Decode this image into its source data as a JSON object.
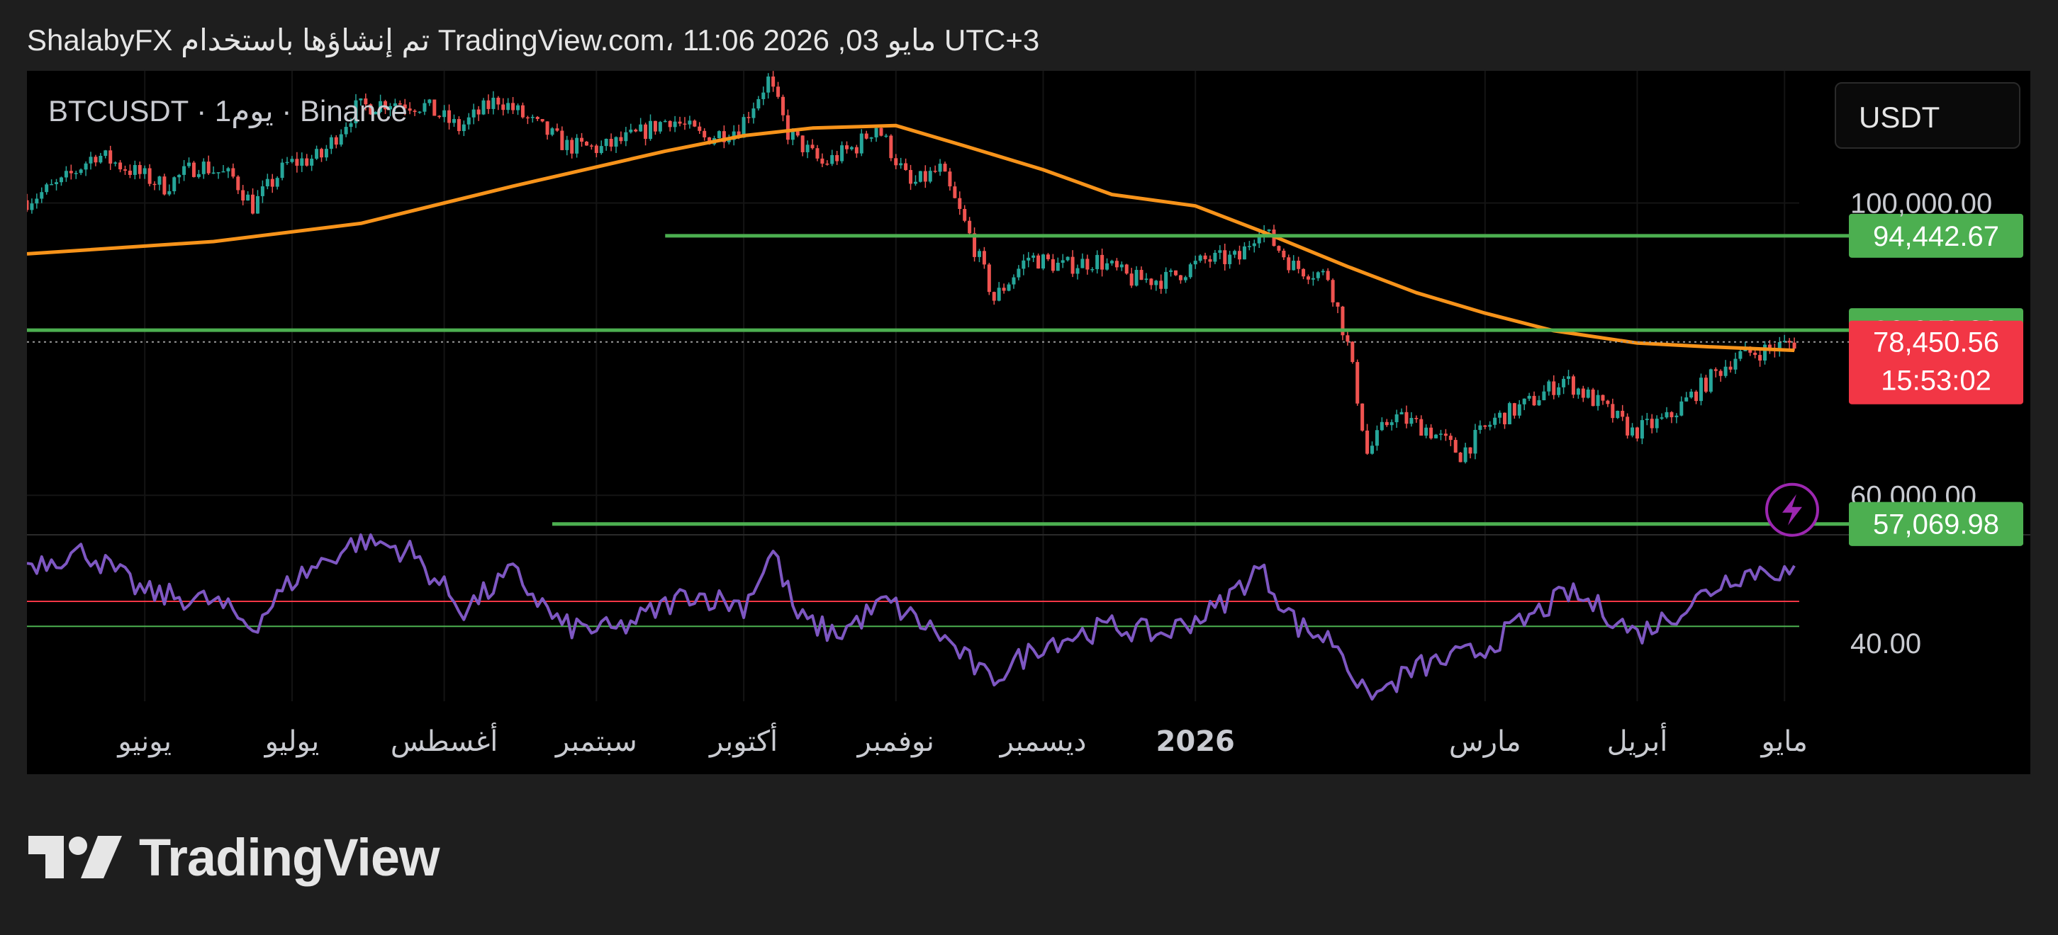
{
  "header": {
    "text": "ShalabyFX تم إنشاؤها باستخدام TradingView.com، 11:06 2026 ,03 مايو UTC+3"
  },
  "chart_header": {
    "symbol_line": "BTCUSDT · 1يوم · Binance",
    "currency": "USDT"
  },
  "logo": {
    "text": "TradingView"
  },
  "colors": {
    "background": "#000000",
    "page": "#1e1e1e",
    "up": "#26a69a",
    "down": "#ef5350",
    "ma": "#f7931a",
    "level": "#4caf50",
    "rsi": "#7e57c2",
    "rsi_upper": "#f23645",
    "rsi_lower": "#4caf50",
    "price_tag": "#f23645",
    "level_tag": "#4caf50"
  },
  "icons": {
    "alert": "lightning-icon"
  },
  "chart_data": {
    "type": "candlestick",
    "symbol": "BTCUSDT",
    "interval": "1D",
    "exchange": "Binance",
    "y_scale": "log",
    "ylim": [
      56000,
      126000
    ],
    "price_ticks": [
      {
        "value": 100000,
        "label": "100,000.00"
      },
      {
        "value": 60000,
        "label": "60,000.00"
      }
    ],
    "x_axis": {
      "start": "2025-05-08",
      "end": "2026-05-04"
    },
    "x_labels": [
      {
        "date": "2025-06-01",
        "label": "يونيو",
        "bold": false
      },
      {
        "date": "2025-07-01",
        "label": "يوليو",
        "bold": false
      },
      {
        "date": "2025-08-01",
        "label": "أغسطس",
        "bold": false
      },
      {
        "date": "2025-09-01",
        "label": "سبتمبر",
        "bold": false
      },
      {
        "date": "2025-10-01",
        "label": "أكتوبر",
        "bold": false
      },
      {
        "date": "2025-11-01",
        "label": "نوفمبر",
        "bold": false
      },
      {
        "date": "2025-12-01",
        "label": "ديسمبر",
        "bold": false
      },
      {
        "date": "2026-01-01",
        "label": "2026",
        "bold": true
      },
      {
        "date": "2026-03-01",
        "label": "مارس",
        "bold": false
      },
      {
        "date": "2026-04-01",
        "label": "أبريل",
        "bold": false
      },
      {
        "date": "2026-05-01",
        "label": "مايو",
        "bold": false
      }
    ],
    "price_path": [
      [
        "2025-05-08",
        100500
      ],
      [
        "2025-05-15",
        103500
      ],
      [
        "2025-05-22",
        109000
      ],
      [
        "2025-05-29",
        106000
      ],
      [
        "2025-06-05",
        103000
      ],
      [
        "2025-06-12",
        107000
      ],
      [
        "2025-06-19",
        104500
      ],
      [
        "2025-06-23",
        99500
      ],
      [
        "2025-06-30",
        107000
      ],
      [
        "2025-07-07",
        108500
      ],
      [
        "2025-07-14",
        118000
      ],
      [
        "2025-07-21",
        119500
      ],
      [
        "2025-07-28",
        118500
      ],
      [
        "2025-08-04",
        114000
      ],
      [
        "2025-08-12",
        120000
      ],
      [
        "2025-08-19",
        115000
      ],
      [
        "2025-08-26",
        110500
      ],
      [
        "2025-09-02",
        110000
      ],
      [
        "2025-09-09",
        112500
      ],
      [
        "2025-09-16",
        116000
      ],
      [
        "2025-09-23",
        112000
      ],
      [
        "2025-09-30",
        114000
      ],
      [
        "2025-10-06",
        124000
      ],
      [
        "2025-10-10",
        113000
      ],
      [
        "2025-10-17",
        107000
      ],
      [
        "2025-10-24",
        110500
      ],
      [
        "2025-10-28",
        114500
      ],
      [
        "2025-11-04",
        103000
      ],
      [
        "2025-11-10",
        106000
      ],
      [
        "2025-11-17",
        92500
      ],
      [
        "2025-11-21",
        84500
      ],
      [
        "2025-11-28",
        91000
      ],
      [
        "2025-12-05",
        89500
      ],
      [
        "2025-12-12",
        90500
      ],
      [
        "2025-12-19",
        87500
      ],
      [
        "2025-12-26",
        87500
      ],
      [
        "2026-01-03",
        90500
      ],
      [
        "2026-01-10",
        90800
      ],
      [
        "2026-01-14",
        96000
      ],
      [
        "2026-01-21",
        89500
      ],
      [
        "2026-01-28",
        88000
      ],
      [
        "2026-02-01",
        78000
      ],
      [
        "2026-02-05",
        64500
      ],
      [
        "2026-02-10",
        69000
      ],
      [
        "2026-02-17",
        67500
      ],
      [
        "2026-02-24",
        64500
      ],
      [
        "2026-03-03",
        68500
      ],
      [
        "2026-03-10",
        70500
      ],
      [
        "2026-03-17",
        73500
      ],
      [
        "2026-03-24",
        70500
      ],
      [
        "2026-03-31",
        67000
      ],
      [
        "2026-04-07",
        68500
      ],
      [
        "2026-04-14",
        72500
      ],
      [
        "2026-04-21",
        76500
      ],
      [
        "2026-04-28",
        77500
      ],
      [
        "2026-05-03",
        78450.56
      ]
    ],
    "moving_average": [
      [
        "2025-05-08",
        91500
      ],
      [
        "2025-06-15",
        93500
      ],
      [
        "2025-07-15",
        96500
      ],
      [
        "2025-08-15",
        103000
      ],
      [
        "2025-09-15",
        109500
      ],
      [
        "2025-10-01",
        112500
      ],
      [
        "2025-10-15",
        114000
      ],
      [
        "2025-11-01",
        114500
      ],
      [
        "2025-11-15",
        110500
      ],
      [
        "2025-12-01",
        106000
      ],
      [
        "2025-12-15",
        101500
      ],
      [
        "2026-01-01",
        99500
      ],
      [
        "2026-01-15",
        95000
      ],
      [
        "2026-02-01",
        89500
      ],
      [
        "2026-02-15",
        85500
      ],
      [
        "2026-03-01",
        82500
      ],
      [
        "2026-03-15",
        80000
      ],
      [
        "2026-04-01",
        78300
      ],
      [
        "2026-04-15",
        77800
      ],
      [
        "2026-05-03",
        77300
      ]
    ],
    "levels": [
      {
        "value": 94442.67,
        "label": "94,442.67",
        "start": "2025-09-15"
      },
      {
        "value": 80079.39,
        "label": "80,079.39",
        "start": "2025-05-08"
      },
      {
        "value": 57069.98,
        "label": "57,069.98",
        "start": "2025-08-23"
      }
    ],
    "last_price": {
      "value": 78450.56,
      "label": "78,450.56",
      "countdown": "15:53:02"
    },
    "rsi": {
      "upper": 50,
      "lower": 44,
      "tick": {
        "value": 40,
        "label": "40.00"
      },
      "ylim": [
        26,
        66
      ],
      "path": [
        [
          "2025-05-08",
          59
        ],
        [
          "2025-05-20",
          62
        ],
        [
          "2025-06-01",
          52
        ],
        [
          "2025-06-15",
          50
        ],
        [
          "2025-06-23",
          44
        ],
        [
          "2025-07-01",
          55
        ],
        [
          "2025-07-15",
          65
        ],
        [
          "2025-07-25",
          62
        ],
        [
          "2025-08-05",
          48
        ],
        [
          "2025-08-15",
          57
        ],
        [
          "2025-08-25",
          44
        ],
        [
          "2025-09-05",
          43
        ],
        [
          "2025-09-20",
          52
        ],
        [
          "2025-10-01",
          49
        ],
        [
          "2025-10-07",
          62
        ],
        [
          "2025-10-12",
          46
        ],
        [
          "2025-10-20",
          42
        ],
        [
          "2025-10-30",
          50
        ],
        [
          "2025-11-10",
          42
        ],
        [
          "2025-11-20",
          31
        ],
        [
          "2025-12-01",
          40
        ],
        [
          "2025-12-15",
          44
        ],
        [
          "2025-12-25",
          42
        ],
        [
          "2026-01-05",
          48
        ],
        [
          "2026-01-14",
          58
        ],
        [
          "2026-01-22",
          44
        ],
        [
          "2026-01-30",
          40
        ],
        [
          "2026-02-05",
          26
        ],
        [
          "2026-02-15",
          34
        ],
        [
          "2026-02-28",
          38
        ],
        [
          "2026-03-10",
          46
        ],
        [
          "2026-03-18",
          52
        ],
        [
          "2026-03-25",
          48
        ],
        [
          "2026-04-01",
          42
        ],
        [
          "2026-04-10",
          48
        ],
        [
          "2026-04-20",
          56
        ],
        [
          "2026-04-28",
          58
        ],
        [
          "2026-05-03",
          56
        ]
      ]
    }
  }
}
